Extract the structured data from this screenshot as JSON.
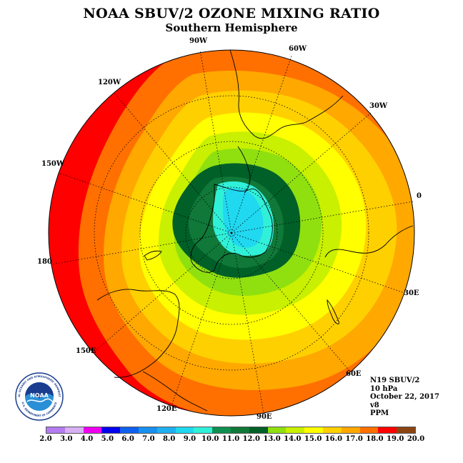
{
  "title": "NOAA SBUV/2 OZONE MIXING RATIO",
  "subtitle": "Southern Hemisphere",
  "map": {
    "projection": "polar stereographic, south pole",
    "longitude_labels": [
      "90W",
      "60W",
      "30W",
      "0",
      "30E",
      "60E",
      "90E",
      "120E",
      "150E",
      "180",
      "150W",
      "120W"
    ],
    "field_levels_outer_to_inner": [
      19.0,
      18.0,
      17.0,
      16.0,
      15.0,
      14.0,
      13.0,
      12.0,
      11.0,
      10.0,
      9.0
    ]
  },
  "info": {
    "instrument": "N19 SBUV/2",
    "level": "10 hPa",
    "date": "October 22, 2017",
    "version": "v8",
    "units": "PPM"
  },
  "colorbar": {
    "ticks": [
      "2.0",
      "3.0",
      "4.0",
      "5.0",
      "6.0",
      "7.0",
      "8.0",
      "9.0",
      "10.0",
      "11.0",
      "12.0",
      "13.0",
      "14.0",
      "15.0",
      "16.0",
      "17.0",
      "18.0",
      "19.0",
      "20.0"
    ],
    "colors": [
      "#b57bf0",
      "#d8b0f4",
      "#ee00ee",
      "#0000ee",
      "#1060ee",
      "#1890ee",
      "#20b0f0",
      "#20d8f0",
      "#30f0d8",
      "#109050",
      "#107838",
      "#006028",
      "#90e010",
      "#c8f000",
      "#ffff00",
      "#ffd000",
      "#ffa800",
      "#ff7000",
      "#ff0000",
      "#8b4513"
    ]
  },
  "logo": {
    "text": "NOAA",
    "ring_text": "NATIONAL OCEANIC AND ATMOSPHERIC ADMINISTRATION",
    "ring_text_bottom": "U.S. DEPARTMENT OF COMMERCE"
  }
}
